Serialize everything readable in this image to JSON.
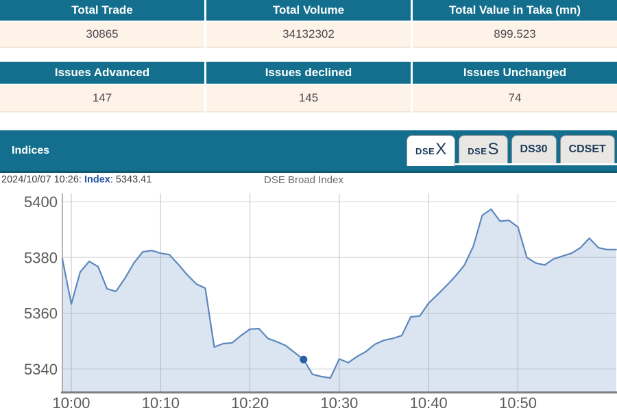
{
  "summary_table": {
    "headers": [
      "Total Trade",
      "Total Volume",
      "Total Value in Taka (mn)"
    ],
    "values": [
      "30865",
      "34132302",
      "899.523"
    ]
  },
  "issues_table": {
    "headers": [
      "Issues Advanced",
      "Issues declined",
      "Issues Unchanged"
    ],
    "values": [
      "147",
      "145",
      "74"
    ]
  },
  "indices": {
    "title": "Indices",
    "tabs": [
      {
        "label_small": "DSE",
        "label_big": "X",
        "active": true
      },
      {
        "label_small": "DSE",
        "label_big": "S",
        "active": false
      },
      {
        "label": "DS30",
        "active": false
      },
      {
        "label": "CDSET",
        "active": false
      }
    ],
    "tooltip": {
      "datetime": "2024/10/07 10:26: ",
      "label": "Index",
      "value_suffix": ": 5343.41"
    },
    "chart_title": "DSE Broad Index"
  },
  "colors": {
    "teal_header": "#136f8d",
    "teal_border": "#0e5a74",
    "row_cream": "#fdf3e8",
    "tab_text": "#1c3a57",
    "tooltip_blue": "#2255a4"
  },
  "chart_data": {
    "type": "area",
    "title": "DSE Broad Index",
    "x": [
      "09:59",
      "10:00",
      "10:01",
      "10:02",
      "10:03",
      "10:04",
      "10:05",
      "10:06",
      "10:07",
      "10:08",
      "10:09",
      "10:10",
      "10:11",
      "10:12",
      "10:13",
      "10:14",
      "10:15",
      "10:16",
      "10:17",
      "10:18",
      "10:19",
      "10:20",
      "10:21",
      "10:22",
      "10:23",
      "10:24",
      "10:25",
      "10:26",
      "10:27",
      "10:28",
      "10:29",
      "10:30",
      "10:31",
      "10:32",
      "10:33",
      "10:34",
      "10:35",
      "10:36",
      "10:37",
      "10:38",
      "10:39",
      "10:40",
      "10:41",
      "10:42",
      "10:43",
      "10:44",
      "10:45",
      "10:46",
      "10:47",
      "10:48",
      "10:49",
      "10:50",
      "10:51",
      "10:52",
      "10:53",
      "10:54",
      "10:55",
      "10:56",
      "10:57",
      "10:58",
      "10:59",
      "11:00",
      "11:01"
    ],
    "values": [
      5379.5,
      5363.3,
      5374.8,
      5378.6,
      5376.7,
      5368.8,
      5367.8,
      5372.5,
      5378,
      5382,
      5382.5,
      5381.5,
      5381,
      5377.4,
      5373.7,
      5370.5,
      5369,
      5347.9,
      5349.1,
      5349.4,
      5352,
      5354.3,
      5354.5,
      5351,
      5349.8,
      5348.4,
      5345.9,
      5343.41,
      5338.1,
      5337.3,
      5336.8,
      5343.6,
      5342.3,
      5344.5,
      5346.3,
      5348.9,
      5350.3,
      5351,
      5352,
      5358.7,
      5359,
      5363.6,
      5366.7,
      5369.9,
      5373.3,
      5377.2,
      5384,
      5395.1,
      5397.3,
      5393,
      5393.3,
      5390.9,
      5380,
      5378,
      5377.3,
      5379.5,
      5380.5,
      5381.5,
      5383.5,
      5386.9,
      5383.5,
      5382.8,
      5382.8
    ],
    "marker": {
      "time": "10:26",
      "value": 5343.41
    },
    "y_ticks": [
      5340,
      5360,
      5380,
      5400
    ],
    "x_ticks": [
      "10:00",
      "10:10",
      "10:20",
      "10:30",
      "10:40",
      "10:50"
    ],
    "ylim": [
      5332,
      5403
    ],
    "xlim": [
      "09:59",
      "11:01"
    ],
    "grid": true,
    "line_color": "#5b87bd",
    "fill_color": "rgba(91,135,189,0.22)",
    "marker_color": "#2a5fa5",
    "axis_label_color": "#5a5a5a"
  }
}
